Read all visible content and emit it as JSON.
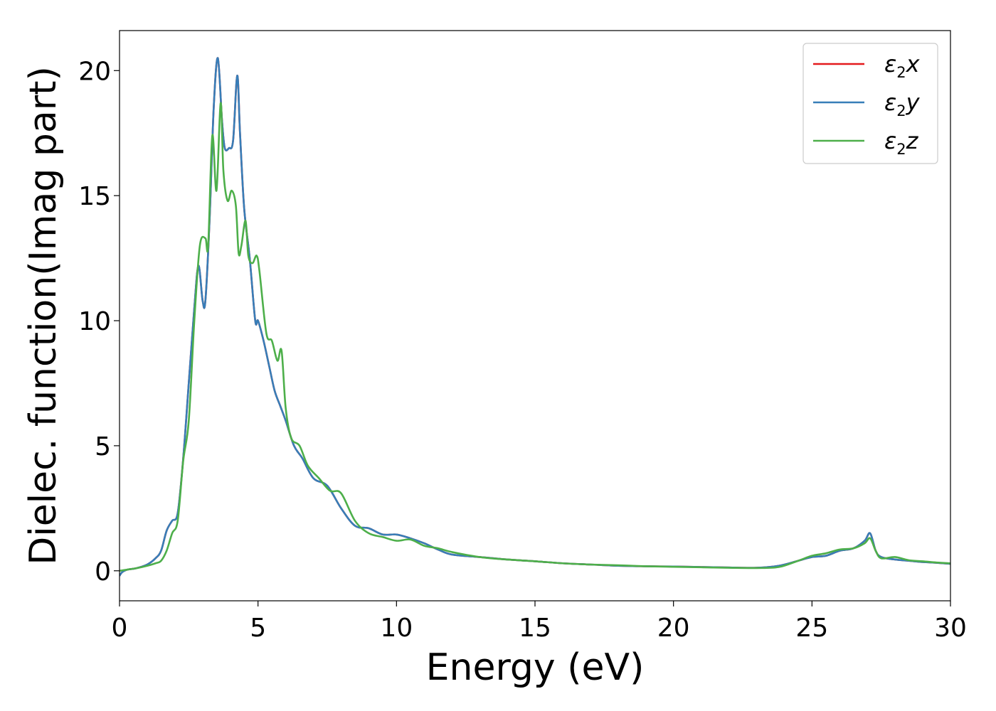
{
  "chart_data": {
    "type": "line",
    "xlabel": "Energy (eV)",
    "ylabel": "Dielec. function(Imag part)",
    "xlim": [
      0,
      30
    ],
    "ylim": [
      -1.2,
      21.6
    ],
    "x_ticks": [
      0,
      5,
      10,
      15,
      20,
      25,
      30
    ],
    "y_ticks": [
      0,
      5,
      10,
      15,
      20
    ],
    "grid": false,
    "legend_position": "top-right",
    "series": [
      {
        "name": "ε2x",
        "legend_base": "ε",
        "legend_sub": "2",
        "legend_var": "x",
        "color": "#e41a1c",
        "x": [
          0,
          0.1,
          0.3,
          0.6,
          1.0,
          1.3,
          1.5,
          1.7,
          1.9,
          2.1,
          2.3,
          2.5,
          2.7,
          2.85,
          3.0,
          3.1,
          3.25,
          3.4,
          3.55,
          3.7,
          3.8,
          3.95,
          4.1,
          4.25,
          4.35,
          4.5,
          4.7,
          4.9,
          5.0,
          5.2,
          5.4,
          5.6,
          5.8,
          6.0,
          6.3,
          6.6,
          7.0,
          7.5,
          8.0,
          8.5,
          9.0,
          9.5,
          10.0,
          10.5,
          11.0,
          11.5,
          12.0,
          13.0,
          14.0,
          15.0,
          16.0,
          17.0,
          18.0,
          19.0,
          20.0,
          21.0,
          22.0,
          23.0,
          23.8,
          24.5,
          25.0,
          25.5,
          26.0,
          26.5,
          26.9,
          27.1,
          27.3,
          27.5,
          28.0,
          28.5,
          29.0,
          29.5,
          30.0
        ],
        "y": [
          -0.2,
          -0.05,
          0.05,
          0.1,
          0.25,
          0.5,
          0.8,
          1.6,
          2.0,
          2.3,
          4.5,
          7.5,
          10.5,
          12.2,
          10.8,
          10.8,
          14.0,
          18.5,
          20.5,
          18.0,
          16.9,
          16.9,
          17.2,
          19.8,
          17.5,
          14.5,
          12.5,
          10.0,
          10.0,
          9.2,
          8.2,
          7.2,
          6.6,
          6.0,
          5.0,
          4.5,
          3.7,
          3.4,
          2.5,
          1.8,
          1.7,
          1.45,
          1.45,
          1.3,
          1.1,
          0.85,
          0.65,
          0.55,
          0.45,
          0.38,
          0.3,
          0.25,
          0.2,
          0.18,
          0.17,
          0.15,
          0.13,
          0.12,
          0.2,
          0.4,
          0.55,
          0.6,
          0.8,
          0.9,
          1.2,
          1.5,
          0.8,
          0.55,
          0.45,
          0.4,
          0.35,
          0.32,
          0.28
        ]
      },
      {
        "name": "ε2y",
        "legend_base": "ε",
        "legend_sub": "2",
        "legend_var": "y",
        "color": "#377eb8",
        "x": [
          0,
          0.1,
          0.3,
          0.6,
          1.0,
          1.3,
          1.5,
          1.7,
          1.9,
          2.1,
          2.3,
          2.5,
          2.7,
          2.85,
          3.0,
          3.1,
          3.25,
          3.4,
          3.55,
          3.7,
          3.8,
          3.95,
          4.1,
          4.25,
          4.35,
          4.5,
          4.7,
          4.9,
          5.0,
          5.2,
          5.4,
          5.6,
          5.8,
          6.0,
          6.3,
          6.6,
          7.0,
          7.5,
          8.0,
          8.5,
          9.0,
          9.5,
          10.0,
          10.5,
          11.0,
          11.5,
          12.0,
          13.0,
          14.0,
          15.0,
          16.0,
          17.0,
          18.0,
          19.0,
          20.0,
          21.0,
          22.0,
          23.0,
          23.8,
          24.5,
          25.0,
          25.5,
          26.0,
          26.5,
          26.9,
          27.1,
          27.3,
          27.5,
          28.0,
          28.5,
          29.0,
          29.5,
          30.0
        ],
        "y": [
          -0.2,
          -0.05,
          0.05,
          0.1,
          0.25,
          0.5,
          0.8,
          1.6,
          2.0,
          2.3,
          4.5,
          7.5,
          10.5,
          12.2,
          10.8,
          10.8,
          14.0,
          18.5,
          20.5,
          18.0,
          16.9,
          16.9,
          17.2,
          19.8,
          17.5,
          14.5,
          12.5,
          10.0,
          10.0,
          9.2,
          8.2,
          7.2,
          6.6,
          6.0,
          5.0,
          4.5,
          3.7,
          3.4,
          2.5,
          1.8,
          1.7,
          1.45,
          1.45,
          1.3,
          1.1,
          0.85,
          0.65,
          0.55,
          0.45,
          0.38,
          0.3,
          0.25,
          0.2,
          0.18,
          0.17,
          0.15,
          0.13,
          0.12,
          0.2,
          0.4,
          0.55,
          0.6,
          0.8,
          0.9,
          1.2,
          1.5,
          0.8,
          0.55,
          0.45,
          0.4,
          0.35,
          0.32,
          0.28
        ]
      },
      {
        "name": "ε2z",
        "legend_base": "ε",
        "legend_sub": "2",
        "legend_var": "z",
        "color": "#4daf4a",
        "x": [
          0,
          0.3,
          0.6,
          1.0,
          1.3,
          1.5,
          1.7,
          1.9,
          2.1,
          2.3,
          2.5,
          2.7,
          2.9,
          3.1,
          3.2,
          3.35,
          3.5,
          3.65,
          3.75,
          3.9,
          4.05,
          4.2,
          4.3,
          4.4,
          4.55,
          4.65,
          4.8,
          4.95,
          5.05,
          5.3,
          5.5,
          5.7,
          5.85,
          6.0,
          6.2,
          6.5,
          6.8,
          7.2,
          7.6,
          8.0,
          8.5,
          9.0,
          9.5,
          10.0,
          10.5,
          11.0,
          11.5,
          12.0,
          13.0,
          14.0,
          15.0,
          16.0,
          17.0,
          18.0,
          19.0,
          20.0,
          21.0,
          22.0,
          23.0,
          23.8,
          24.5,
          25.0,
          25.5,
          26.0,
          26.5,
          26.9,
          27.1,
          27.3,
          27.5,
          28.0,
          28.5,
          29.0,
          29.5,
          30.0
        ],
        "y": [
          0,
          0.05,
          0.1,
          0.2,
          0.3,
          0.4,
          0.8,
          1.5,
          2.0,
          4.4,
          6.0,
          10.0,
          13.0,
          13.3,
          13.0,
          17.4,
          15.2,
          18.7,
          16.0,
          14.8,
          15.2,
          14.6,
          12.7,
          13.0,
          14.0,
          12.6,
          12.3,
          12.6,
          12.0,
          9.5,
          9.2,
          8.4,
          8.8,
          6.5,
          5.3,
          5.0,
          4.2,
          3.7,
          3.2,
          3.1,
          2.0,
          1.5,
          1.35,
          1.2,
          1.25,
          1.0,
          0.9,
          0.75,
          0.55,
          0.45,
          0.38,
          0.3,
          0.25,
          0.22,
          0.18,
          0.16,
          0.14,
          0.12,
          0.11,
          0.15,
          0.4,
          0.6,
          0.7,
          0.85,
          0.9,
          1.1,
          1.3,
          0.8,
          0.5,
          0.55,
          0.42,
          0.38,
          0.33,
          0.3
        ]
      }
    ]
  }
}
